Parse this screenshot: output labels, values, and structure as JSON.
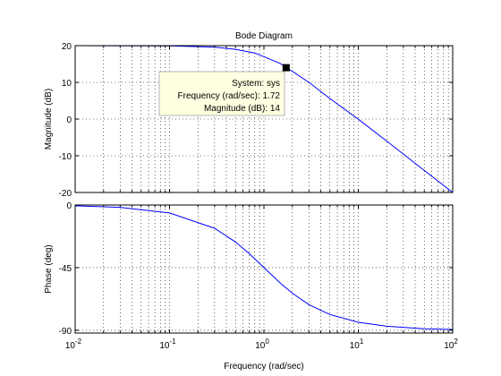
{
  "chart_data": [
    {
      "type": "line",
      "title": "Bode Diagram",
      "ylabel": "Magnitude (dB)",
      "xlabel": "",
      "x_scale": "log",
      "xlim": [
        0.01,
        100
      ],
      "ylim": [
        -20,
        20
      ],
      "yticks": [
        -20,
        -10,
        0,
        10,
        20
      ],
      "grid": true,
      "series": [
        {
          "color": "#0000ff",
          "x": [
            0.01,
            0.1,
            0.3,
            0.5,
            0.8,
            1,
            1.5,
            1.72,
            2,
            3,
            5,
            10,
            20,
            50,
            100
          ],
          "y": [
            20,
            19.96,
            19.6,
            19.0,
            18.0,
            17.0,
            15.1,
            14,
            13.0,
            10.0,
            5.6,
            -0.04,
            -6.0,
            -14.0,
            -20.0
          ]
        }
      ],
      "datatip": {
        "x": 1.72,
        "y": 14,
        "lines": [
          "System: sys",
          "Frequency (rad/sec): 1.72",
          "Magnitude (dB): 14"
        ]
      }
    },
    {
      "type": "line",
      "title": "",
      "ylabel": "Phase (deg)",
      "xlabel": "Frequency  (rad/sec)",
      "x_scale": "log",
      "xlim": [
        0.01,
        100
      ],
      "ylim": [
        -92,
        0
      ],
      "yticks": [
        0,
        -45,
        -90
      ],
      "xticks": [
        0.01,
        0.1,
        1,
        10,
        100
      ],
      "xtick_labels": [
        [
          "10",
          "-2"
        ],
        [
          "10",
          "-1"
        ],
        [
          "10",
          "0"
        ],
        [
          "10",
          "1"
        ],
        [
          "10",
          "2"
        ]
      ],
      "grid": true,
      "series": [
        {
          "color": "#0000ff",
          "x": [
            0.01,
            0.03,
            0.1,
            0.3,
            0.5,
            0.7,
            1,
            1.5,
            2,
            3,
            5,
            10,
            20,
            50,
            100
          ],
          "y": [
            -0.6,
            -1.7,
            -5.7,
            -16.7,
            -26.6,
            -35.0,
            -45,
            -56.3,
            -63.4,
            -71.6,
            -78.7,
            -84.3,
            -87.1,
            -88.9,
            -89.4
          ]
        }
      ]
    }
  ]
}
